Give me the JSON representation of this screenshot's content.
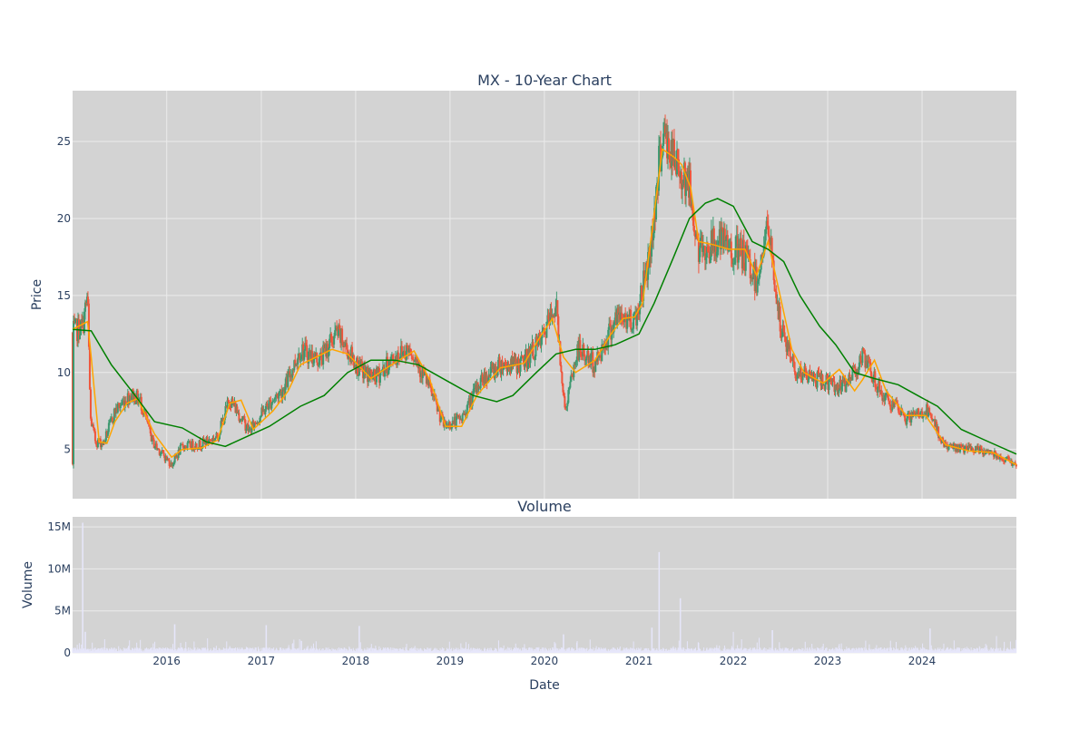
{
  "chart_data": [
    {
      "type": "candlestick",
      "title": "MX - 10-Year Chart",
      "ylabel": "Price",
      "xlabel": "",
      "ylim": [
        1.8,
        28.3
      ],
      "y_ticks": [
        5,
        10,
        15,
        20,
        25
      ],
      "x_range": [
        "2015-01-02",
        "2024-12-31"
      ],
      "grid": true,
      "legend": "none",
      "colors": {
        "background": "#d3d3d3",
        "grid": "#ebebeb",
        "up": "#3d9970",
        "down": "#ef553b",
        "ma_short": "#ffa500",
        "ma_long": "#008000",
        "text": "#2a3f5f"
      },
      "series": [
        {
          "kind": "candles",
          "approx_close": [
            [
              "2015-01-05",
              12.6
            ],
            [
              "2015-02-10",
              13.0
            ],
            [
              "2015-03-01",
              15.0
            ],
            [
              "2015-03-12",
              7.0
            ],
            [
              "2015-04-01",
              5.5
            ],
            [
              "2015-05-01",
              5.4
            ],
            [
              "2015-06-15",
              7.5
            ],
            [
              "2015-08-15",
              8.6
            ],
            [
              "2015-09-20",
              8.2
            ],
            [
              "2015-11-10",
              5.4
            ],
            [
              "2016-01-20",
              4.0
            ],
            [
              "2016-03-01",
              5.2
            ],
            [
              "2016-05-01",
              5.3
            ],
            [
              "2016-07-15",
              5.8
            ],
            [
              "2016-09-01",
              8.3
            ],
            [
              "2016-11-15",
              6.2
            ],
            [
              "2017-02-01",
              8.0
            ],
            [
              "2017-04-01",
              9.0
            ],
            [
              "2017-06-01",
              11.5
            ],
            [
              "2017-08-15",
              10.8
            ],
            [
              "2017-10-20",
              12.6
            ],
            [
              "2018-01-15",
              10.2
            ],
            [
              "2018-03-15",
              9.6
            ],
            [
              "2018-06-15",
              11.2
            ],
            [
              "2018-08-01",
              11.6
            ],
            [
              "2018-10-01",
              9.5
            ],
            [
              "2018-12-10",
              6.5
            ],
            [
              "2019-02-15",
              7.0
            ],
            [
              "2019-05-01",
              9.5
            ],
            [
              "2019-07-15",
              10.5
            ],
            [
              "2019-10-01",
              10.5
            ],
            [
              "2019-12-20",
              12.0
            ],
            [
              "2020-02-15",
              14.5
            ],
            [
              "2020-03-20",
              7.5
            ],
            [
              "2020-05-10",
              11.5
            ],
            [
              "2020-07-15",
              10.5
            ],
            [
              "2020-10-01",
              13.5
            ],
            [
              "2020-12-20",
              13.5
            ],
            [
              "2021-02-15",
              18.0
            ],
            [
              "2021-04-01",
              25.5
            ],
            [
              "2021-05-20",
              23.5
            ],
            [
              "2021-07-10",
              22.5
            ],
            [
              "2021-08-20",
              17.8
            ],
            [
              "2021-11-01",
              18.5
            ],
            [
              "2022-02-15",
              17.5
            ],
            [
              "2022-04-01",
              16.0
            ],
            [
              "2022-05-15",
              19.5
            ],
            [
              "2022-07-01",
              13.0
            ],
            [
              "2022-09-01",
              10.0
            ],
            [
              "2022-12-01",
              9.5
            ],
            [
              "2023-03-01",
              9.0
            ],
            [
              "2023-05-15",
              11.0
            ],
            [
              "2023-08-01",
              8.5
            ],
            [
              "2023-11-01",
              7.0
            ],
            [
              "2024-01-20",
              7.5
            ],
            [
              "2024-04-01",
              5.2
            ],
            [
              "2024-07-01",
              5.0
            ],
            [
              "2024-10-01",
              4.8
            ],
            [
              "2024-12-31",
              4.0
            ]
          ]
        },
        {
          "kind": "line",
          "color_key": "ma_short",
          "points": [
            [
              "2015-01-02",
              12.8
            ],
            [
              "2015-03-01",
              13.3
            ],
            [
              "2015-03-15",
              11.0
            ],
            [
              "2015-04-15",
              5.5
            ],
            [
              "2015-05-15",
              5.4
            ],
            [
              "2015-06-15",
              6.8
            ],
            [
              "2015-08-01",
              8.0
            ],
            [
              "2015-09-10",
              8.3
            ],
            [
              "2015-11-15",
              6.0
            ],
            [
              "2016-01-20",
              4.5
            ],
            [
              "2016-03-01",
              5.0
            ],
            [
              "2016-05-15",
              5.1
            ],
            [
              "2016-07-15",
              5.6
            ],
            [
              "2016-09-01",
              8.0
            ],
            [
              "2016-10-15",
              8.2
            ],
            [
              "2016-12-01",
              6.3
            ],
            [
              "2017-02-15",
              7.5
            ],
            [
              "2017-04-15",
              8.8
            ],
            [
              "2017-06-01",
              10.5
            ],
            [
              "2017-08-01",
              11.0
            ],
            [
              "2017-10-01",
              11.5
            ],
            [
              "2017-12-01",
              11.2
            ],
            [
              "2018-03-01",
              9.6
            ],
            [
              "2018-05-01",
              10.3
            ],
            [
              "2018-08-15",
              11.4
            ],
            [
              "2018-10-15",
              9.5
            ],
            [
              "2018-12-15",
              6.5
            ],
            [
              "2019-02-15",
              6.5
            ],
            [
              "2019-04-15",
              8.5
            ],
            [
              "2019-07-15",
              10.3
            ],
            [
              "2019-10-15",
              10.6
            ],
            [
              "2019-12-15",
              12.3
            ],
            [
              "2020-02-01",
              13.5
            ],
            [
              "2020-03-15",
              11.0
            ],
            [
              "2020-05-01",
              10.0
            ],
            [
              "2020-07-15",
              10.8
            ],
            [
              "2020-09-15",
              12.5
            ],
            [
              "2020-11-01",
              13.5
            ],
            [
              "2020-12-15",
              13.6
            ],
            [
              "2021-01-15",
              14.5
            ],
            [
              "2021-02-15",
              18.5
            ],
            [
              "2021-04-01",
              24.5
            ],
            [
              "2021-05-15",
              24.0
            ],
            [
              "2021-06-15",
              23.5
            ],
            [
              "2021-07-20",
              22.0
            ],
            [
              "2021-08-20",
              18.5
            ],
            [
              "2021-10-15",
              18.3
            ],
            [
              "2021-12-15",
              18.0
            ],
            [
              "2022-02-15",
              18.0
            ],
            [
              "2022-04-01",
              16.3
            ],
            [
              "2022-05-15",
              18.5
            ],
            [
              "2022-07-01",
              15.0
            ],
            [
              "2022-08-15",
              11.5
            ],
            [
              "2022-10-01",
              10.0
            ],
            [
              "2022-12-15",
              9.3
            ],
            [
              "2023-02-15",
              10.2
            ],
            [
              "2023-04-15",
              8.8
            ],
            [
              "2023-05-15",
              9.5
            ],
            [
              "2023-07-01",
              10.8
            ],
            [
              "2023-08-15",
              8.8
            ],
            [
              "2023-11-01",
              7.2
            ],
            [
              "2024-01-15",
              7.2
            ],
            [
              "2024-04-01",
              5.3
            ],
            [
              "2024-07-01",
              4.9
            ],
            [
              "2024-10-01",
              4.8
            ],
            [
              "2024-12-31",
              4.0
            ]
          ]
        },
        {
          "kind": "line",
          "color_key": "ma_long",
          "points": [
            [
              "2015-01-02",
              12.8
            ],
            [
              "2015-03-15",
              12.7
            ],
            [
              "2015-06-01",
              10.5
            ],
            [
              "2015-09-01",
              8.5
            ],
            [
              "2015-11-15",
              6.8
            ],
            [
              "2016-03-01",
              6.4
            ],
            [
              "2016-06-01",
              5.5
            ],
            [
              "2016-08-15",
              5.2
            ],
            [
              "2017-02-01",
              6.5
            ],
            [
              "2017-06-01",
              7.8
            ],
            [
              "2017-09-01",
              8.5
            ],
            [
              "2017-12-01",
              10.0
            ],
            [
              "2018-03-01",
              10.8
            ],
            [
              "2018-06-01",
              10.8
            ],
            [
              "2018-09-01",
              10.5
            ],
            [
              "2018-12-15",
              9.5
            ],
            [
              "2019-04-01",
              8.5
            ],
            [
              "2019-07-01",
              8.1
            ],
            [
              "2019-09-01",
              8.5
            ],
            [
              "2019-12-01",
              10.0
            ],
            [
              "2020-02-15",
              11.2
            ],
            [
              "2020-05-01",
              11.5
            ],
            [
              "2020-07-15",
              11.5
            ],
            [
              "2020-10-01",
              11.8
            ],
            [
              "2021-01-01",
              12.5
            ],
            [
              "2021-03-01",
              14.5
            ],
            [
              "2021-05-15",
              17.5
            ],
            [
              "2021-07-15",
              20.0
            ],
            [
              "2021-09-15",
              21.0
            ],
            [
              "2021-11-01",
              21.3
            ],
            [
              "2022-01-01",
              20.8
            ],
            [
              "2022-03-15",
              18.5
            ],
            [
              "2022-05-15",
              18.0
            ],
            [
              "2022-07-15",
              17.2
            ],
            [
              "2022-09-15",
              15.0
            ],
            [
              "2022-12-01",
              13.0
            ],
            [
              "2023-02-01",
              11.8
            ],
            [
              "2023-04-15",
              10.0
            ],
            [
              "2023-07-01",
              9.6
            ],
            [
              "2023-10-01",
              9.2
            ],
            [
              "2023-12-15",
              8.5
            ],
            [
              "2024-03-01",
              7.8
            ],
            [
              "2024-06-01",
              6.3
            ],
            [
              "2024-09-01",
              5.6
            ],
            [
              "2024-12-31",
              4.7
            ]
          ]
        }
      ]
    },
    {
      "type": "bar",
      "title": "Volume",
      "ylabel": "Volume",
      "xlabel": "Date",
      "ylim": [
        0,
        16200000
      ],
      "y_ticks": [
        {
          "value": 0,
          "label": "0"
        },
        {
          "value": 5000000,
          "label": "5M"
        },
        {
          "value": 10000000,
          "label": "10M"
        },
        {
          "value": 15000000,
          "label": "15M"
        }
      ],
      "x_ticks": [
        {
          "date": "2016-01-01",
          "label": "2016"
        },
        {
          "date": "2017-01-01",
          "label": "2017"
        },
        {
          "date": "2018-01-01",
          "label": "2018"
        },
        {
          "date": "2019-01-01",
          "label": "2019"
        },
        {
          "date": "2020-01-01",
          "label": "2020"
        },
        {
          "date": "2021-01-01",
          "label": "2021"
        },
        {
          "date": "2022-01-01",
          "label": "2022"
        },
        {
          "date": "2023-01-01",
          "label": "2023"
        },
        {
          "date": "2024-01-01",
          "label": "2024"
        }
      ],
      "bar_color": "#e6e6fa",
      "notable_values": [
        [
          "2015-02-10",
          15500000
        ],
        [
          "2015-02-20",
          2500000
        ],
        [
          "2016-02-01",
          3400000
        ],
        [
          "2017-01-20",
          3300000
        ],
        [
          "2018-01-15",
          3200000
        ],
        [
          "2020-03-15",
          2200000
        ],
        [
          "2021-02-20",
          3000000
        ],
        [
          "2021-03-20",
          12000000
        ],
        [
          "2021-06-10",
          6500000
        ],
        [
          "2022-01-01",
          2500000
        ],
        [
          "2022-06-01",
          2700000
        ],
        [
          "2024-02-01",
          2900000
        ],
        [
          "2024-10-15",
          2000000
        ]
      ]
    }
  ]
}
